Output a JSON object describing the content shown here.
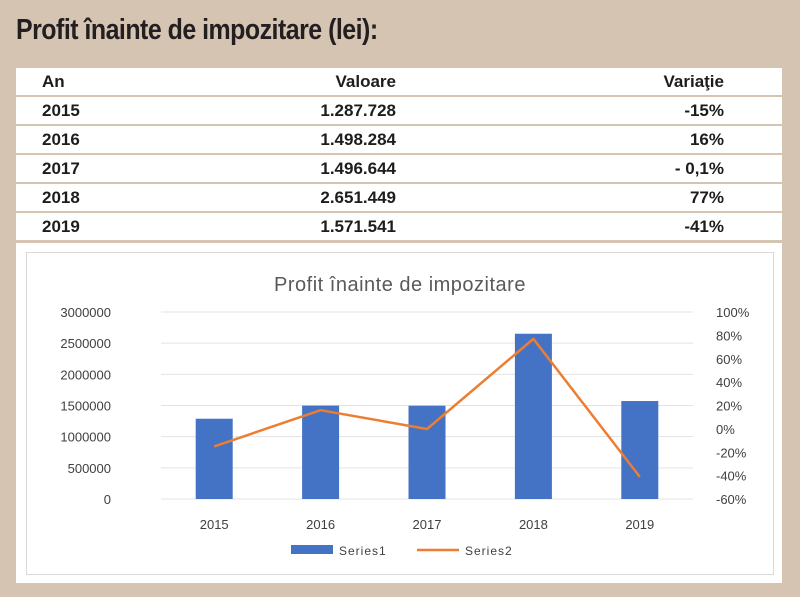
{
  "page_title": "Profit înainte de impozitare (lei):",
  "table": {
    "headers": [
      "An",
      "Valoare",
      "Variaţie"
    ],
    "rows": [
      [
        "2015",
        "1.287.728",
        "-15%"
      ],
      [
        "2016",
        "1.498.284",
        "16%"
      ],
      [
        "2017",
        "1.496.644",
        "- 0,1%"
      ],
      [
        "2018",
        "2.651.449",
        "77%"
      ],
      [
        "2019",
        "1.571.541",
        "-41%"
      ]
    ]
  },
  "colors": {
    "bar": "#4472c4",
    "line": "#ed7d31",
    "background": "#d6c4b3"
  },
  "chart_data": {
    "type": "bar",
    "title": "Profit înainte de impozitare",
    "categories": [
      "2015",
      "2016",
      "2017",
      "2018",
      "2019"
    ],
    "series": [
      {
        "name": "Series1",
        "type": "bar",
        "axis": "left",
        "values": [
          1287728,
          1498284,
          1496644,
          2651449,
          1571541
        ]
      },
      {
        "name": "Series2",
        "type": "line",
        "axis": "right",
        "values": [
          -0.15,
          0.16,
          -0.001,
          0.77,
          -0.41
        ]
      }
    ],
    "y_left": {
      "ylim": [
        0,
        3000000
      ],
      "ticks": [
        "3000000",
        "2500000",
        "2000000",
        "1500000",
        "1000000",
        "500000",
        "0"
      ]
    },
    "y_right": {
      "ylim": [
        -0.6,
        1.0
      ],
      "ticks": [
        "100%",
        "80%",
        "60%",
        "40%",
        "20%",
        "0%",
        "-20%",
        "-40%",
        "-60%"
      ]
    },
    "grid": true,
    "legend_position": "bottom"
  }
}
